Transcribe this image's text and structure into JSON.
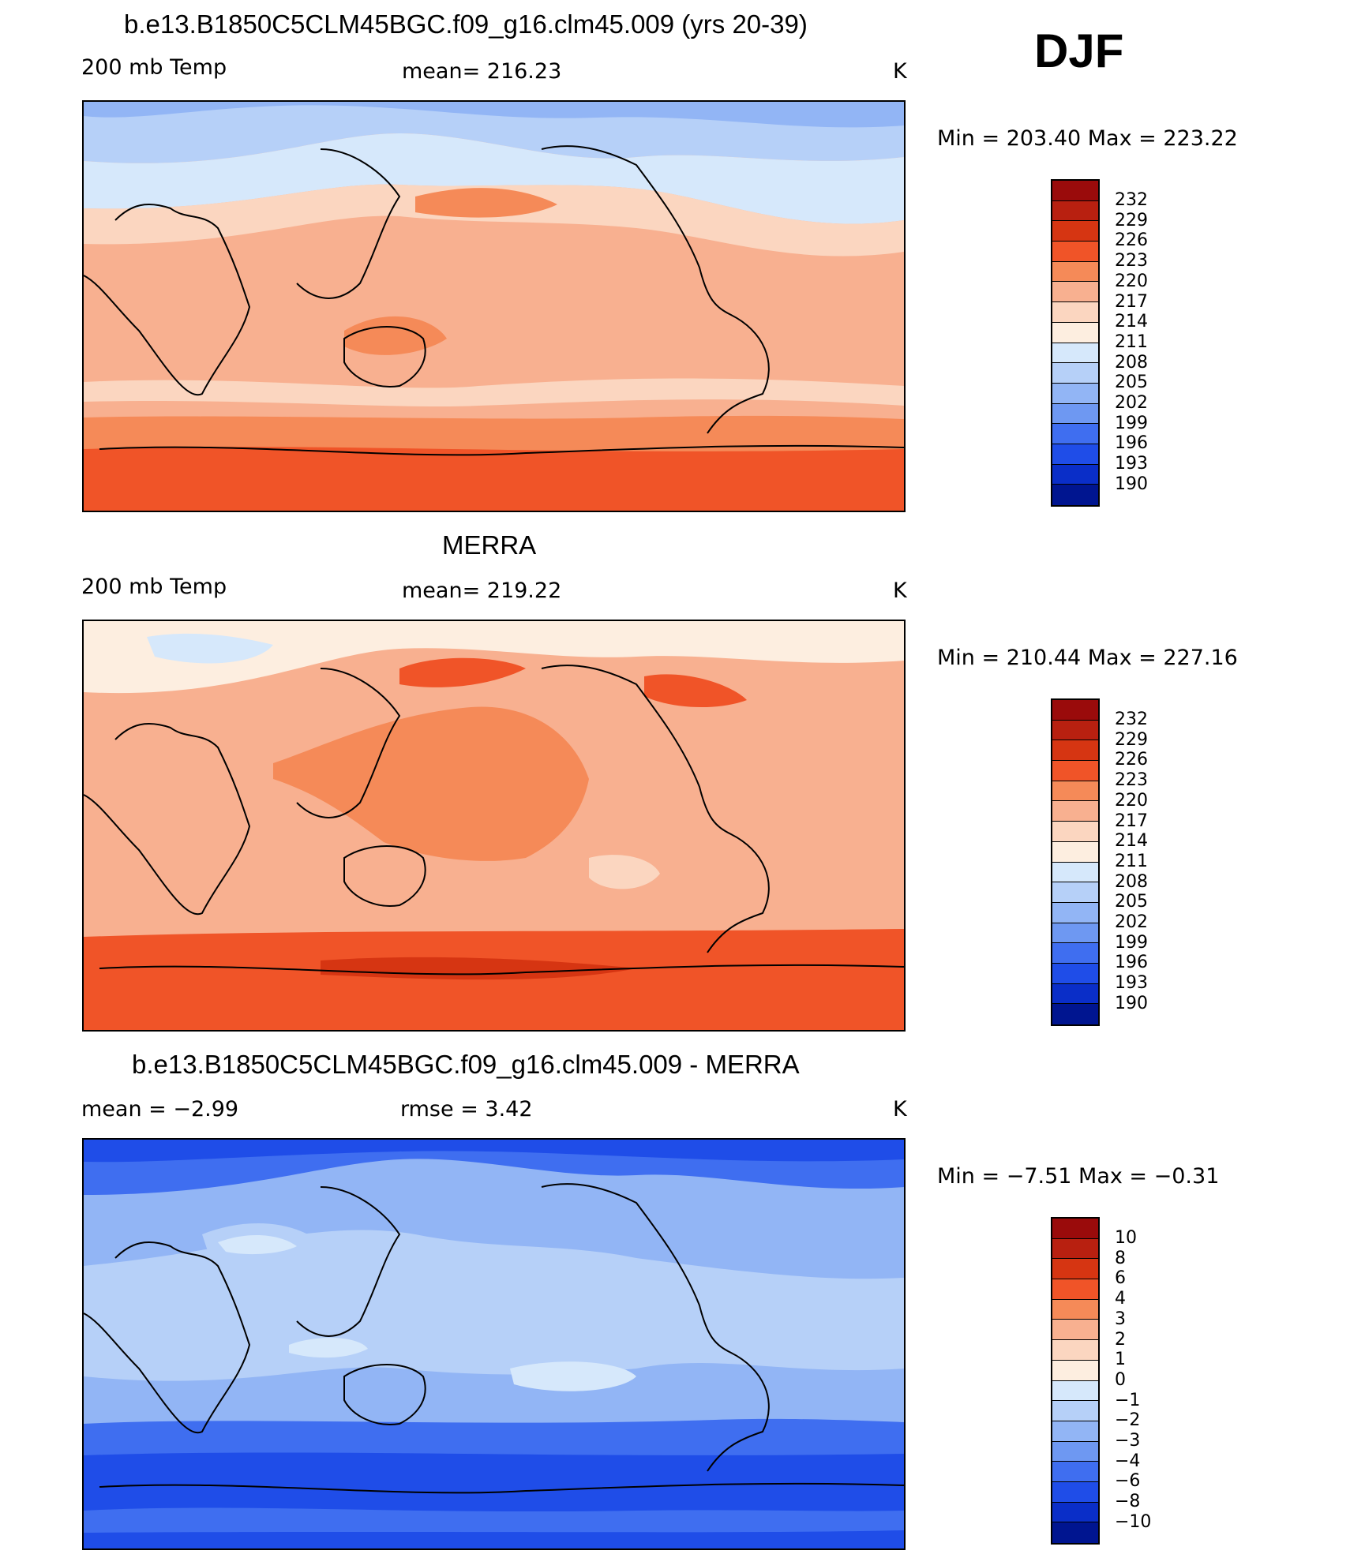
{
  "season": "DJF",
  "panels": [
    {
      "title": "b.e13.B1850C5CLM45BGC.f09_g16.clm45.009 (yrs 20-39)",
      "left_label": "200 mb Temp",
      "center_label": "mean= 216.23",
      "units": "K",
      "range_label": "Min  =  203.40  Max  =  223.22",
      "palette": "abs"
    },
    {
      "title": "MERRA",
      "left_label": "200 mb Temp",
      "center_label": "mean= 219.22",
      "units": "K",
      "range_label": "Min  =  210.44  Max  =  227.16",
      "palette": "abs"
    },
    {
      "title": "b.e13.B1850C5CLM45BGC.f09_g16.clm45.009 - MERRA",
      "left_label": "mean  =     −2.99",
      "center_label": "rmse  =     3.42",
      "units": "K",
      "range_label": "Min  =    −7.51  Max  =    −0.31",
      "palette": "diff"
    }
  ],
  "colorbars": {
    "abs": {
      "labels": [
        "232",
        "229",
        "226",
        "223",
        "220",
        "217",
        "214",
        "211",
        "208",
        "205",
        "202",
        "199",
        "196",
        "193",
        "190"
      ],
      "colors": [
        "#9a0b0b",
        "#b82010",
        "#d63512",
        "#f05428",
        "#f58a58",
        "#f8b090",
        "#fbd6c0",
        "#fdeee0",
        "#d6e8fb",
        "#b6d0f8",
        "#92b5f5",
        "#6e98f2",
        "#3f6ef0",
        "#1f4de8",
        "#0a2ec8",
        "#001590"
      ]
    },
    "diff": {
      "labels": [
        "10",
        "8",
        "6",
        "4",
        "3",
        "2",
        "1",
        "0",
        "−1",
        "−2",
        "−3",
        "−4",
        "−6",
        "−8",
        "−10"
      ],
      "colors": [
        "#9a0b0b",
        "#b82010",
        "#d63512",
        "#f05428",
        "#f58a58",
        "#f8b090",
        "#fbd6c0",
        "#fdeee0",
        "#d6e8fb",
        "#b6d0f8",
        "#92b5f5",
        "#6e98f2",
        "#3f6ef0",
        "#1f4de8",
        "#0a2ec8",
        "#001590"
      ]
    }
  }
}
